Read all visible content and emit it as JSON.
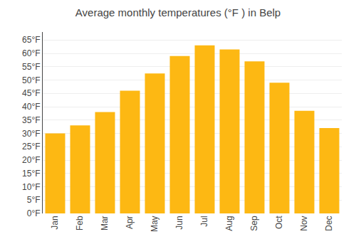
{
  "chart_data": {
    "type": "bar",
    "title": "Average monthly temperatures (°F ) in Belp",
    "categories": [
      "Jan",
      "Feb",
      "Mar",
      "Apr",
      "May",
      "Jun",
      "Jul",
      "Aug",
      "Sep",
      "Oct",
      "Nov",
      "Dec"
    ],
    "values": [
      30,
      33,
      38,
      46,
      52.5,
      59,
      63,
      61.5,
      57,
      49,
      38.5,
      32
    ],
    "color": "#FDB813",
    "ylim": [
      0,
      68
    ],
    "yticks": [
      {
        "value": 0,
        "label": "0°F"
      },
      {
        "value": 5,
        "label": "5°F"
      },
      {
        "value": 10,
        "label": "10°F"
      },
      {
        "value": 15,
        "label": "15°F"
      },
      {
        "value": 20,
        "label": "20°F"
      },
      {
        "value": 25,
        "label": "25°F"
      },
      {
        "value": 30,
        "label": "30°F"
      },
      {
        "value": 35,
        "label": "35°F"
      },
      {
        "value": 40,
        "label": "40°F"
      },
      {
        "value": 45,
        "label": "45°F"
      },
      {
        "value": 50,
        "label": "50°F"
      },
      {
        "value": 55,
        "label": "55°F"
      },
      {
        "value": 60,
        "label": "60°F"
      },
      {
        "value": 65,
        "label": "65°F"
      }
    ],
    "grid": true
  }
}
